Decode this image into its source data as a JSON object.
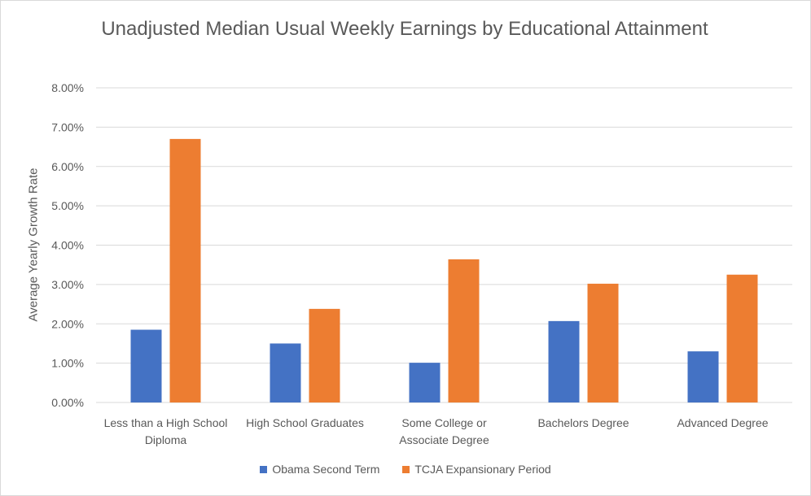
{
  "chart_data": {
    "type": "bar",
    "title": "Unadjusted Median Usual Weekly Earnings by Educational Attainment",
    "xlabel": "",
    "ylabel": "Average Yearly Growth Rate",
    "ylim": [
      0,
      8
    ],
    "yticks": [
      "0.00%",
      "1.00%",
      "2.00%",
      "3.00%",
      "4.00%",
      "5.00%",
      "6.00%",
      "7.00%",
      "8.00%"
    ],
    "grid": true,
    "legend": "bottom",
    "categories": [
      [
        "Less than a High School",
        "Diploma"
      ],
      [
        "High School Graduates"
      ],
      [
        "Some College or",
        "Associate Degree"
      ],
      [
        "Bachelors Degree"
      ],
      [
        "Advanced Degree"
      ]
    ],
    "series": [
      {
        "name": "Obama Second Term",
        "color": "#4472C4",
        "values": [
          1.85,
          1.5,
          1.01,
          2.07,
          1.3
        ]
      },
      {
        "name": "TCJA Expansionary Period",
        "color": "#ED7D31",
        "values": [
          6.7,
          2.38,
          3.64,
          3.02,
          3.25
        ]
      }
    ]
  }
}
